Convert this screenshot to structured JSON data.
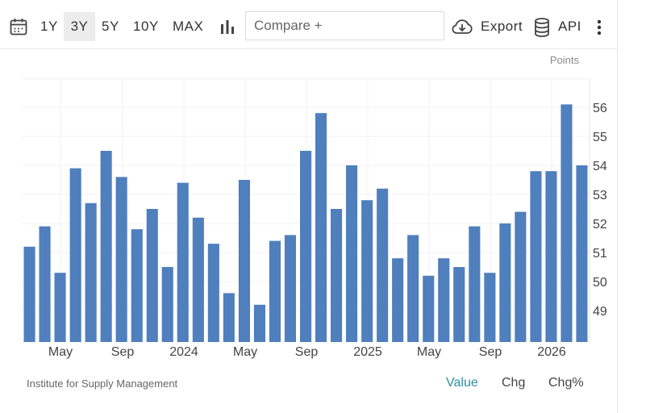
{
  "toolbar": {
    "ranges": [
      "1Y",
      "3Y",
      "5Y",
      "10Y",
      "MAX"
    ],
    "active_range": "3Y",
    "compare_placeholder": "Compare +",
    "export_label": "Export",
    "api_label": "API"
  },
  "footer": {
    "source": "Institute for Supply Management",
    "modes": [
      "Value",
      "Chg",
      "Chg%"
    ],
    "active_mode": "Value"
  },
  "colors": {
    "bar": "#4f7fbd",
    "active_mode": "#2e8fa6"
  },
  "chart_data": {
    "type": "bar",
    "unit": "Points",
    "ylim": [
      48,
      57
    ],
    "y_ticks": [
      49,
      50,
      51,
      52,
      53,
      54,
      55,
      56
    ],
    "x_tick_labels": [
      "May",
      "Sep",
      "2024",
      "May",
      "Sep",
      "2025",
      "May",
      "Sep",
      "2026"
    ],
    "series": [
      {
        "name": "Value",
        "values": [
          51.2,
          51.9,
          50.3,
          53.9,
          52.7,
          54.5,
          53.6,
          51.8,
          52.5,
          50.5,
          53.4,
          52.2,
          51.3,
          49.6,
          53.5,
          49.2,
          51.4,
          51.6,
          54.5,
          55.8,
          52.5,
          54.0,
          52.8,
          53.2,
          50.8,
          51.6,
          50.2,
          50.8,
          50.5,
          51.9,
          50.3,
          52.0,
          52.4,
          53.8,
          53.8,
          56.1,
          54.0
        ]
      }
    ]
  }
}
